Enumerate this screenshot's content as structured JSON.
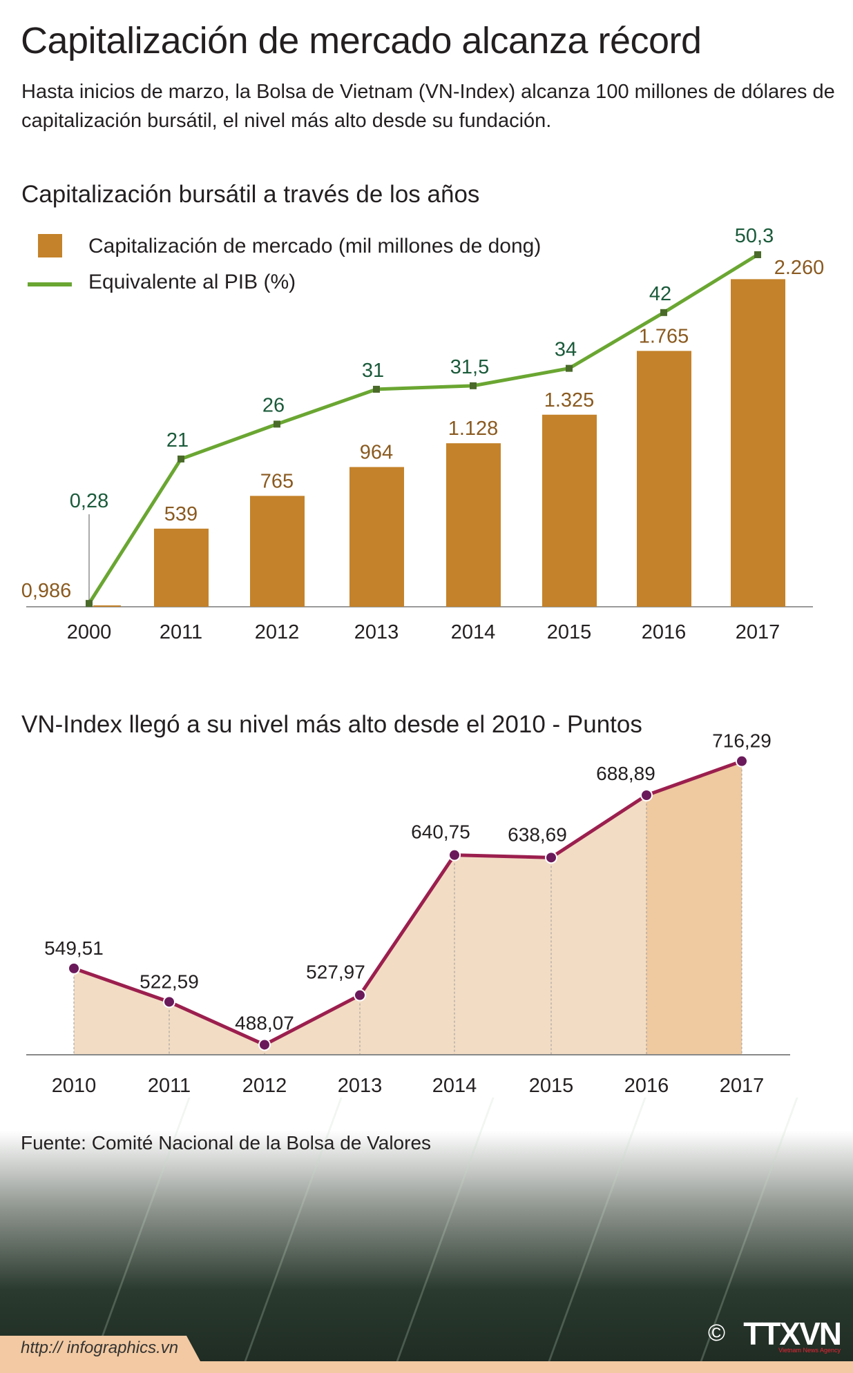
{
  "title": "Capitalización de mercado alcanza récord",
  "subtitle": "Hasta inicios de marzo, la Bolsa de Vietnam (VN-Index) alcanza 100 millones de dólares de capitalización bursátil, el nivel más alto desde su fundación.",
  "source": "Fuente: Comité Nacional de la Bolsa de Valores",
  "url": "http:// infographics.vn",
  "logo": {
    "copyright": "©",
    "name": "TTXVN",
    "tagline": "Vietnam News Agency"
  },
  "chart_data": [
    {
      "type": "bar+line",
      "title": "Capitalización bursátil a través de los años",
      "categories": [
        "2000",
        "2011",
        "2012",
        "2013",
        "2014",
        "2015",
        "2016",
        "2017"
      ],
      "series": [
        {
          "name": "Capitalización de mercado (mil millones de dong)",
          "type": "bar",
          "color": "#c4822a",
          "values": [
            0.986,
            539,
            765,
            964,
            1128,
            1325,
            1765,
            2260
          ],
          "labels": [
            "0,986",
            "539",
            "765",
            "964",
            "1.128",
            "1.325",
            "1.765",
            "2.260"
          ]
        },
        {
          "name": "Equivalente al PIB (%)",
          "type": "line",
          "color": "#6aa632",
          "values": [
            0.28,
            21,
            26,
            31,
            31.5,
            34,
            42,
            50.3
          ],
          "labels": [
            "0,28",
            "21",
            "26",
            "31",
            "31,5",
            "34",
            "42",
            "50,3"
          ]
        }
      ],
      "legend": "top-left"
    },
    {
      "type": "area",
      "title": "VN-Index llegó a su nivel más alto desde el 2010 - Puntos",
      "categories": [
        "2010",
        "2011",
        "2012",
        "2013",
        "2014",
        "2015",
        "2016",
        "2017"
      ],
      "values": [
        549.51,
        522.59,
        488.07,
        527.97,
        640.75,
        638.69,
        688.89,
        716.29
      ],
      "labels": [
        "549,51",
        "522,59",
        "488,07",
        "527,97",
        "640,75",
        "638,69",
        "688,89",
        "716,29"
      ],
      "line_color": "#9b1f4e",
      "fill_color": "#f2dcc4"
    }
  ]
}
